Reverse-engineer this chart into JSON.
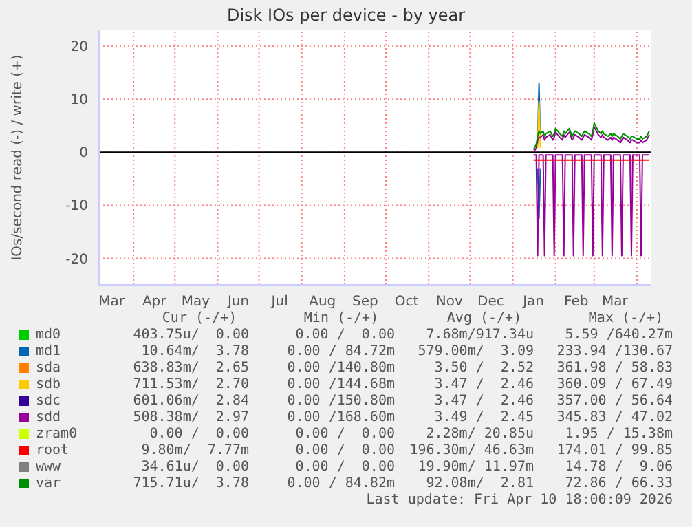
{
  "chart_data": {
    "type": "line",
    "title": "Disk IOs per device - by year",
    "ylabel": "IOs/second read (-) / write (+)",
    "x": [
      "2026-01-16",
      "2026-01-18",
      "2026-01-19",
      "2026-01-20",
      "2026-01-21",
      "2026-01-23",
      "2026-01-24",
      "2026-01-25",
      "2026-01-28",
      "2026-01-30",
      "2026-01-31",
      "2026-02-01",
      "2026-02-04",
      "2026-02-06",
      "2026-02-07",
      "2026-02-08",
      "2026-02-11",
      "2026-02-13",
      "2026-02-14",
      "2026-02-15",
      "2026-02-18",
      "2026-02-20",
      "2026-02-21",
      "2026-02-22",
      "2026-02-25",
      "2026-02-27",
      "2026-02-28",
      "2026-03-01",
      "2026-03-04",
      "2026-03-06",
      "2026-03-07",
      "2026-03-08",
      "2026-03-11",
      "2026-03-13",
      "2026-03-14",
      "2026-03-15",
      "2026-03-18",
      "2026-03-20",
      "2026-03-21",
      "2026-03-22",
      "2026-03-25",
      "2026-03-27",
      "2026-03-28",
      "2026-03-29",
      "2026-04-01",
      "2026-04-03",
      "2026-04-04",
      "2026-04-05",
      "2026-04-08",
      "2026-04-10"
    ],
    "xlim": [
      "2025-03-07",
      "2026-04-11"
    ],
    "xticks": [
      {
        "value": "2025-03-16",
        "label": "Mar"
      },
      {
        "value": "2025-04-01",
        "label": null
      },
      {
        "value": "2025-04-16",
        "label": "Apr"
      },
      {
        "value": "2025-05-01",
        "label": null
      },
      {
        "value": "2025-05-16",
        "label": "May"
      },
      {
        "value": "2025-06-01",
        "label": null
      },
      {
        "value": "2025-06-16",
        "label": "Jun"
      },
      {
        "value": "2025-07-01",
        "label": null
      },
      {
        "value": "2025-07-16",
        "label": "Jul"
      },
      {
        "value": "2025-08-01",
        "label": null
      },
      {
        "value": "2025-08-16",
        "label": "Aug"
      },
      {
        "value": "2025-09-01",
        "label": null
      },
      {
        "value": "2025-09-16",
        "label": "Sep"
      },
      {
        "value": "2025-10-01",
        "label": null
      },
      {
        "value": "2025-10-16",
        "label": "Oct"
      },
      {
        "value": "2025-11-01",
        "label": null
      },
      {
        "value": "2025-11-16",
        "label": "Nov"
      },
      {
        "value": "2025-12-01",
        "label": null
      },
      {
        "value": "2025-12-16",
        "label": "Dec"
      },
      {
        "value": "2026-01-01",
        "label": null
      },
      {
        "value": "2026-01-16",
        "label": "Jan"
      },
      {
        "value": "2026-02-01",
        "label": null
      },
      {
        "value": "2026-02-16",
        "label": "Feb"
      },
      {
        "value": "2026-03-01",
        "label": null
      },
      {
        "value": "2026-03-16",
        "label": "Mar"
      },
      {
        "value": "2026-04-01",
        "label": null
      }
    ],
    "ylim": [
      -25,
      23
    ],
    "yticks": [
      -20,
      -10,
      0,
      10,
      20
    ],
    "grid": true,
    "legend": "bottom",
    "ref_lines": [
      {
        "axis": "y",
        "value": 0,
        "color": "#000000"
      }
    ],
    "series": [
      {
        "name": "md0",
        "color": "#00cc00",
        "values": [
          null,
          null,
          null,
          null,
          null,
          null,
          null,
          null,
          null,
          null,
          null,
          null,
          null,
          null,
          null,
          null,
          null,
          null,
          null,
          null,
          null,
          null,
          null,
          null,
          null,
          null,
          null,
          null,
          null,
          null,
          null,
          null,
          null,
          null,
          null,
          null,
          null,
          null,
          null,
          null,
          null,
          null,
          null,
          null,
          null,
          null,
          null,
          null,
          null,
          null
        ]
      },
      {
        "name": "md1",
        "color": "#0066b3",
        "values": [
          null,
          null,
          1.5,
          13,
          1.8,
          null,
          null,
          null,
          null,
          null,
          null,
          null,
          null,
          null,
          null,
          null,
          null,
          null,
          null,
          null,
          null,
          null,
          null,
          null,
          null,
          null,
          null,
          null,
          null,
          null,
          null,
          null,
          null,
          null,
          null,
          null,
          null,
          null,
          null,
          null,
          null,
          null,
          null,
          null,
          null,
          null,
          null,
          null,
          null,
          null
        ]
      },
      {
        "name": "sda",
        "color": "#ff8000",
        "values": [
          null,
          null,
          null,
          null,
          null,
          null,
          null,
          null,
          null,
          null,
          null,
          null,
          null,
          null,
          null,
          null,
          null,
          null,
          null,
          null,
          null,
          null,
          null,
          null,
          null,
          null,
          null,
          null,
          null,
          null,
          null,
          null,
          null,
          null,
          null,
          null,
          null,
          null,
          null,
          null,
          null,
          null,
          null,
          null,
          null,
          null,
          null,
          null,
          null,
          null
        ]
      },
      {
        "name": "sdb",
        "color": "#ffcc00",
        "values": [
          null,
          null,
          0.8,
          9.5,
          0.8,
          null,
          null,
          null,
          null,
          null,
          null,
          null,
          null,
          null,
          null,
          null,
          null,
          null,
          null,
          null,
          null,
          null,
          null,
          null,
          null,
          null,
          null,
          null,
          null,
          null,
          null,
          null,
          null,
          null,
          null,
          null,
          null,
          null,
          null,
          null,
          null,
          null,
          null,
          null,
          null,
          null,
          null,
          null,
          null,
          null
        ]
      },
      {
        "name": "sdc",
        "color": "#330099",
        "values": [
          null,
          null,
          null,
          null,
          null,
          null,
          null,
          null,
          null,
          null,
          null,
          null,
          null,
          null,
          null,
          null,
          null,
          null,
          null,
          null,
          null,
          null,
          null,
          null,
          null,
          null,
          null,
          null,
          null,
          null,
          null,
          null,
          null,
          null,
          null,
          null,
          null,
          null,
          null,
          null,
          null,
          null,
          null,
          null,
          null,
          null,
          null,
          null,
          null,
          null
        ]
      },
      {
        "name": "sdd",
        "color": "#990099",
        "values": [
          0,
          0.8,
          2.3,
          2.8,
          2.8,
          3.3,
          2.3,
          2.8,
          3.3,
          2.3,
          2.8,
          3.8,
          2.8,
          2.3,
          3.3,
          2.8,
          3.8,
          2.3,
          2.8,
          3.3,
          2.8,
          2.3,
          2.8,
          3.3,
          2.8,
          2.3,
          3.3,
          4.8,
          3.3,
          2.8,
          3.3,
          2.8,
          2.3,
          2.8,
          2.3,
          2.8,
          2.3,
          1.8,
          2.3,
          2.8,
          2.3,
          1.8,
          2.3,
          2.3,
          1.8,
          1.8,
          2.3,
          1.8,
          2.3,
          3.3
        ]
      },
      {
        "name": "zram0",
        "color": "#ccff00",
        "values": [
          null,
          null,
          null,
          null,
          null,
          null,
          null,
          null,
          null,
          null,
          null,
          null,
          null,
          null,
          null,
          null,
          null,
          null,
          null,
          null,
          null,
          null,
          null,
          null,
          null,
          null,
          null,
          null,
          null,
          null,
          null,
          null,
          null,
          null,
          null,
          null,
          null,
          null,
          null,
          null,
          null,
          null,
          null,
          null,
          null,
          null,
          null,
          null,
          null,
          null
        ]
      },
      {
        "name": "root",
        "color": "#ff0000",
        "values": [
          null,
          null,
          null,
          null,
          null,
          null,
          null,
          null,
          null,
          null,
          null,
          null,
          null,
          null,
          null,
          null,
          null,
          null,
          null,
          null,
          null,
          null,
          null,
          null,
          null,
          null,
          null,
          null,
          null,
          null,
          null,
          null,
          null,
          null,
          null,
          null,
          null,
          null,
          null,
          null,
          null,
          null,
          null,
          null,
          null,
          null,
          null,
          null,
          null,
          null
        ]
      },
      {
        "name": "www",
        "color": "#808080",
        "values": [
          null,
          null,
          null,
          null,
          null,
          null,
          null,
          null,
          null,
          null,
          null,
          null,
          null,
          null,
          null,
          null,
          null,
          null,
          null,
          null,
          null,
          null,
          null,
          null,
          null,
          null,
          null,
          null,
          null,
          null,
          null,
          null,
          null,
          null,
          null,
          null,
          null,
          null,
          null,
          null,
          null,
          null,
          null,
          null,
          null,
          null,
          null,
          null,
          null,
          null
        ]
      },
      {
        "name": "var",
        "color": "#008f00",
        "values": [
          0.5,
          1.5,
          3,
          4,
          3.5,
          4,
          3,
          3.5,
          4,
          3,
          3.5,
          4.5,
          3.5,
          3,
          4,
          3.5,
          4.5,
          3,
          3.5,
          4,
          3.5,
          3,
          3.5,
          4,
          3.5,
          3,
          4,
          5.5,
          4,
          3.5,
          4,
          3.5,
          3,
          3.5,
          3,
          3.5,
          3,
          2.5,
          3,
          3.5,
          3,
          2.5,
          3,
          3,
          2.5,
          2.5,
          3,
          2.5,
          3,
          4
        ]
      },
      {
        "color": "#0066b3",
        "values": [
          null,
          null,
          -3,
          -12.5,
          -3,
          null,
          null,
          null,
          null,
          null,
          null,
          null,
          null,
          null,
          null,
          null,
          null,
          null,
          null,
          null,
          null,
          null,
          null,
          null,
          null,
          null,
          null,
          null,
          null,
          null,
          null,
          null,
          null,
          null,
          null,
          null,
          null,
          null,
          null,
          null,
          null,
          null,
          null,
          null,
          null,
          null,
          null,
          null,
          null,
          null
        ]
      },
      {
        "color": "#990099",
        "values": [
          -0.5,
          -0.5,
          -19.5,
          -0.5,
          -0.5,
          -0.5,
          -19.5,
          -0.5,
          -0.5,
          -0.5,
          -19.5,
          -0.5,
          -0.5,
          -0.5,
          -19.5,
          -0.5,
          -0.5,
          -0.5,
          -19.5,
          -0.5,
          -0.5,
          -0.5,
          -19.5,
          -0.5,
          -0.5,
          -0.5,
          -19.5,
          -0.5,
          -0.5,
          -0.5,
          -19.5,
          -0.5,
          -0.5,
          -0.5,
          -19.5,
          -0.5,
          -0.5,
          -0.5,
          -19.5,
          -0.5,
          -0.5,
          -0.5,
          -19.5,
          -0.5,
          -0.5,
          -0.5,
          -19.5,
          -0.5,
          -0.5,
          -0.5
        ]
      },
      {
        "color": "#ff0000",
        "values": [
          -1.5,
          -1.5,
          -1.5,
          -1.5,
          -1.5,
          -1.5,
          -1.5,
          -1.5,
          -1.5,
          -1.5,
          -1.5,
          -1.5,
          -1.5,
          -1.5,
          -1.5,
          -1.5,
          -1.5,
          -1.5,
          -1.5,
          -1.5,
          -1.5,
          -1.5,
          -1.5,
          -1.5,
          -1.5,
          -1.5,
          -1.5,
          -1.5,
          -1.5,
          -1.5,
          -1.5,
          -1.5,
          -1.5,
          -1.5,
          -1.5,
          -1.5,
          -1.5,
          -1.5,
          -1.5,
          -1.5,
          -1.5,
          -1.5,
          -1.5,
          -1.5,
          -1.5,
          -1.5,
          -1.5,
          -1.5,
          -1.5,
          -1.5
        ]
      }
    ],
    "annotations": [
      "Cur (-/+)",
      "Min (-/+)",
      "Avg (-/+)",
      "Max (-/+)",
      "403.75u/  0.00",
      "0.00 /  0.00",
      "7.68m/917.34u",
      "5.59 /640.27m",
      "10.64m/  3.78",
      "0.00 / 84.72m",
      "579.00m/  3.09",
      "233.94 /130.67",
      "638.83m/  2.65",
      "0.00 /140.80m",
      "3.50 /  2.52",
      "361.98 / 58.83",
      "711.53m/  2.70",
      "0.00 /144.68m",
      "3.47 /  2.46",
      "360.09 / 67.49",
      "601.06m/  2.84",
      "0.00 /150.80m",
      "3.47 /  2.46",
      "357.00 / 56.64",
      "508.38m/  2.97",
      "0.00 /168.60m",
      "3.49 /  2.45",
      "345.83 / 47.02",
      "0.00 /  0.00",
      "0.00 /  0.00",
      "2.28m/ 20.85u",
      "1.95 / 15.38m",
      "9.80m/  7.77m",
      "0.00 /  0.00",
      "196.30m/ 46.63m",
      "174.01 / 99.85",
      "34.61u/  0.00",
      "0.00 /  0.00",
      "19.90m/ 11.97m",
      "14.78 /  9.06",
      "715.71u/  3.78",
      "0.00 / 84.82m",
      "92.08m/  2.81",
      "72.86 / 66.33",
      "Last update: Fri Apr 10 18:00:09 2026"
    ]
  }
}
